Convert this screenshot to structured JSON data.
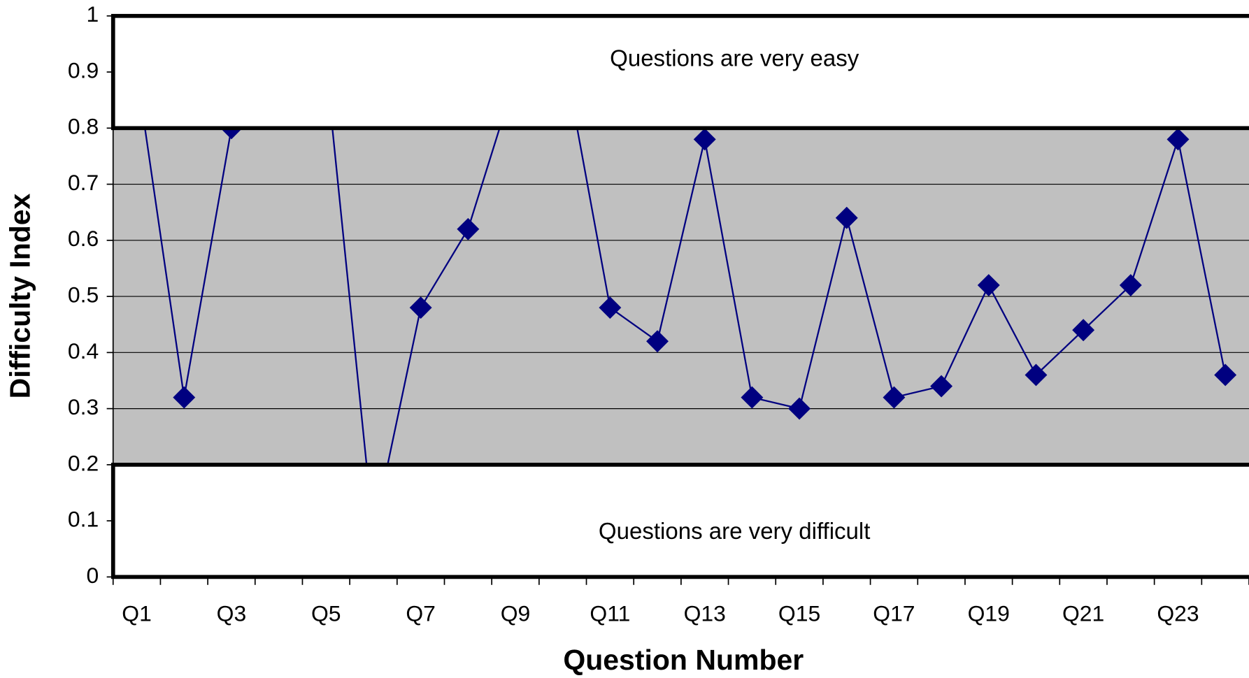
{
  "chart_data": {
    "type": "line",
    "x_label": "Question Number",
    "y_label": "Difficulty Index",
    "categories": [
      "Q1",
      null,
      "Q3",
      null,
      "Q5",
      null,
      "Q7",
      null,
      "Q9",
      null,
      "Q11",
      null,
      "Q13",
      null,
      "Q15",
      null,
      "Q17",
      null,
      "Q19",
      null,
      "Q21",
      null,
      "Q23",
      null
    ],
    "series": [
      {
        "name": "Difficulty Index",
        "color": "#000080",
        "values": [
          0.9,
          0.32,
          0.8,
          0.9,
          0.91,
          0.08,
          0.48,
          0.62,
          0.89,
          0.94,
          0.48,
          0.42,
          0.78,
          0.32,
          0.3,
          0.64,
          0.32,
          0.34,
          0.52,
          0.36,
          0.44,
          0.52,
          0.78,
          0.36
        ]
      }
    ],
    "ylim": [
      0,
      1
    ],
    "yticks": [
      0,
      0.1,
      0.2,
      0.3,
      0.4,
      0.5,
      0.6,
      0.7,
      0.8,
      0.9,
      1
    ],
    "grid": true,
    "plot_background": "#c0c0c0",
    "bands": [
      {
        "from": 0.8,
        "to": 1,
        "label": "Questions are very easy"
      },
      {
        "from": 0,
        "to": 0.2,
        "label": "Questions are very difficult"
      }
    ]
  }
}
